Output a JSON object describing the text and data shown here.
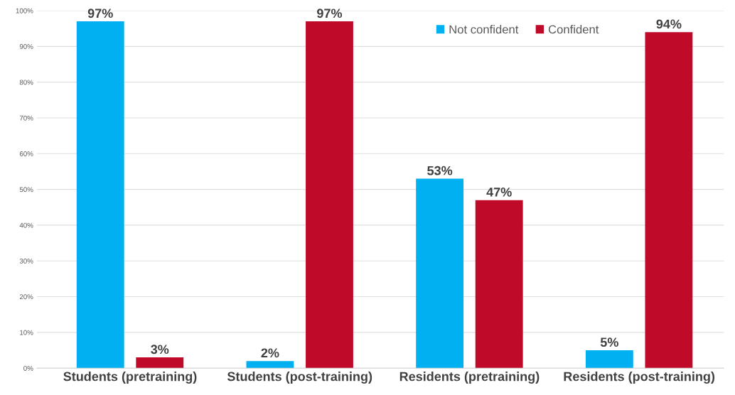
{
  "chart_data": {
    "type": "bar",
    "categories": [
      "Students (pretraining)",
      "Students (post-training)",
      "Residents (pretraining)",
      "Residents (post-training)"
    ],
    "series": [
      {
        "name": "Not confident",
        "color": "#00b0f0",
        "values": [
          97,
          2,
          53,
          5
        ],
        "value_labels": [
          "97%",
          "2%",
          "53%",
          "5%"
        ]
      },
      {
        "name": "Confident",
        "color": "#c00a2a",
        "values": [
          3,
          97,
          47,
          94
        ],
        "value_labels": [
          "3%",
          "97%",
          "47%",
          "94%"
        ]
      }
    ],
    "ylim": [
      0,
      100
    ],
    "yticks": [
      {
        "value": 0,
        "label": "0%"
      },
      {
        "value": 10,
        "label": "10%"
      },
      {
        "value": 20,
        "label": "20%"
      },
      {
        "value": 30,
        "label": "30%"
      },
      {
        "value": 40,
        "label": "40%"
      },
      {
        "value": 50,
        "label": "50%"
      },
      {
        "value": 60,
        "label": "60%"
      },
      {
        "value": 70,
        "label": "70%"
      },
      {
        "value": 80,
        "label": "80%"
      },
      {
        "value": 90,
        "label": "90%"
      },
      {
        "value": 100,
        "label": "100%"
      }
    ],
    "grid": "y",
    "legend": "top right"
  }
}
